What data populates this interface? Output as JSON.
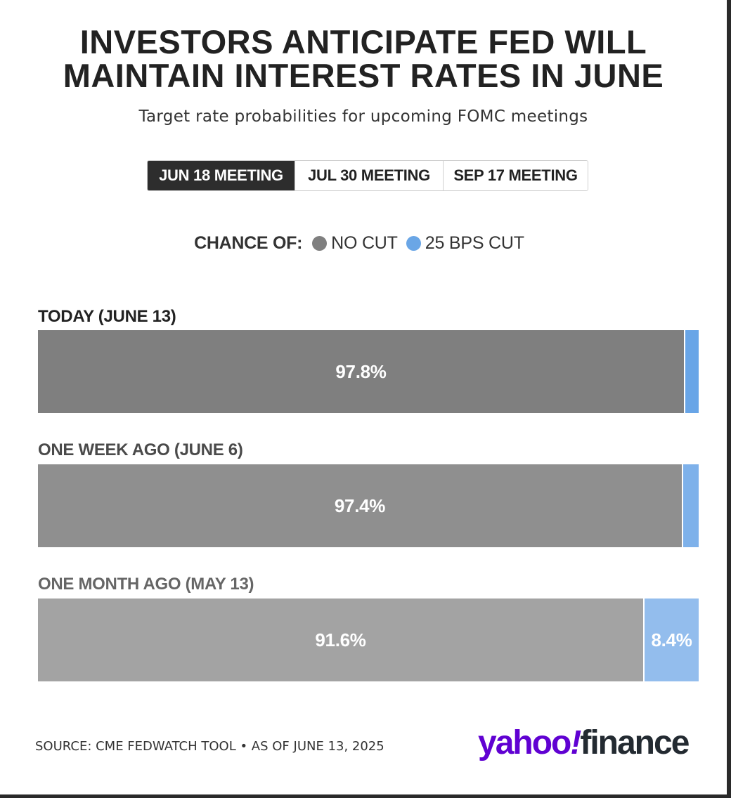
{
  "title_line1": "INVESTORS ANTICIPATE FED WILL",
  "title_line2": "MAINTAIN INTEREST RATES IN JUNE",
  "subtitle": "Target rate probabilities for upcoming FOMC meetings",
  "tabs": [
    {
      "label": "JUN 18 MEETING",
      "active": true
    },
    {
      "label": "JUL 30 MEETING",
      "active": false
    },
    {
      "label": "SEP 17 MEETING",
      "active": false
    }
  ],
  "legend": {
    "title": "CHANCE OF:",
    "items": [
      {
        "label": "NO CUT",
        "color": "#7f7f7f"
      },
      {
        "label": "25 BPS CUT",
        "color": "#6aa6e6"
      }
    ]
  },
  "chart_data": {
    "type": "bar",
    "orientation": "horizontal",
    "stacked": true,
    "categories": [
      "TODAY (JUNE 13)",
      "ONE WEEK AGO (JUNE 6)",
      "ONE MONTH AGO (MAY 13)"
    ],
    "series": [
      {
        "name": "NO CUT",
        "values": [
          97.8,
          97.4,
          91.6
        ],
        "labels": [
          "97.8%",
          "97.4%",
          "91.6%"
        ]
      },
      {
        "name": "25 BPS CUT",
        "values": [
          2.2,
          2.6,
          8.4
        ],
        "labels": [
          "",
          "",
          "8.4%"
        ]
      }
    ],
    "xlim": [
      0,
      100
    ],
    "row_colors": [
      {
        "label": "#222222",
        "no_cut": "#7f7f7f",
        "cut": "#68a5e7"
      },
      {
        "label": "#4a4a4a",
        "no_cut": "#8f8f8f",
        "cut": "#7eb1ea"
      },
      {
        "label": "#666666",
        "no_cut": "#a3a3a3",
        "cut": "#93bded"
      }
    ]
  },
  "footer": {
    "source": "SOURCE: CME FEDWATCH TOOL • AS OF JUNE 13, 2025"
  },
  "logo": {
    "yahoo": "yahoo",
    "bang": "!",
    "finance": "finance"
  }
}
